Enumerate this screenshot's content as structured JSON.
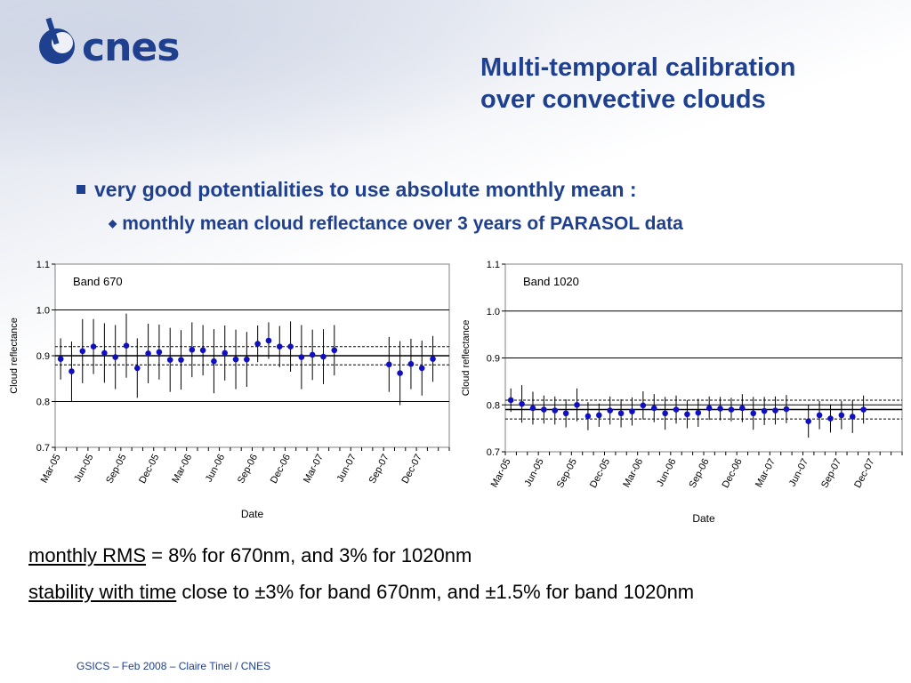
{
  "logo": {
    "text": "cnes"
  },
  "title": {
    "line1": "Multi-temporal calibration",
    "line2": "over convective clouds"
  },
  "bullets": {
    "main": "very good potentialities to use absolute monthly mean :",
    "sub": "monthly mean cloud reflectance over 3 years of PARASOL data"
  },
  "stats": {
    "rms_label": "monthly RMS",
    "rms_text": " = 8% for 670nm, and 3% for 1020nm",
    "stability_label": "stability with time",
    "stability_text": " close to ±3% for band 670nm, and ±1.5% for band 1020nm"
  },
  "footer": {
    "text": "GSICS  – Feb 2008 – Claire Tinel / CNES"
  },
  "colors": {
    "accent": "#1f3f8f",
    "marker": "#1010c0"
  },
  "chart_data": [
    {
      "type": "scatter",
      "title": "Band 670",
      "xlabel": "Date",
      "ylabel": "Cloud reflectance",
      "ylim": [
        0.7,
        1.1
      ],
      "yticks": [
        0.7,
        0.8,
        0.9,
        1.0,
        1.1
      ],
      "ytick_labels": [
        "0.7",
        "0.8",
        "0.9",
        "1.0",
        "1.1"
      ],
      "xtick_labels": [
        "Mar-05",
        "Jun-05",
        "Sep-05",
        "Dec-05",
        "Mar-06",
        "Jun-06",
        "Sep-06",
        "Dec-06",
        "Mar-07",
        "Jun-07",
        "Sep-07",
        "Dec-07"
      ],
      "mean_line": 0.9,
      "band_lines": [
        0.88,
        0.92
      ],
      "hlines": [
        0.8,
        0.9,
        1.0
      ],
      "points": [
        {
          "x": 1,
          "y": 0.893,
          "err": 0.045
        },
        {
          "x": 2,
          "y": 0.866,
          "err": 0.065
        },
        {
          "x": 3,
          "y": 0.91,
          "err": 0.07
        },
        {
          "x": 4,
          "y": 0.92,
          "err": 0.06
        },
        {
          "x": 5,
          "y": 0.906,
          "err": 0.065
        },
        {
          "x": 6,
          "y": 0.897,
          "err": 0.07
        },
        {
          "x": 7,
          "y": 0.922,
          "err": 0.07
        },
        {
          "x": 8,
          "y": 0.873,
          "err": 0.065
        },
        {
          "x": 9,
          "y": 0.905,
          "err": 0.065
        },
        {
          "x": 10,
          "y": 0.908,
          "err": 0.06
        },
        {
          "x": 11,
          "y": 0.891,
          "err": 0.07
        },
        {
          "x": 12,
          "y": 0.891,
          "err": 0.065
        },
        {
          "x": 13,
          "y": 0.913,
          "err": 0.06
        },
        {
          "x": 14,
          "y": 0.912,
          "err": 0.055
        },
        {
          "x": 15,
          "y": 0.888,
          "err": 0.07
        },
        {
          "x": 16,
          "y": 0.906,
          "err": 0.06
        },
        {
          "x": 17,
          "y": 0.892,
          "err": 0.065
        },
        {
          "x": 18,
          "y": 0.892,
          "err": 0.06
        },
        {
          "x": 19,
          "y": 0.926,
          "err": 0.04
        },
        {
          "x": 20,
          "y": 0.933,
          "err": 0.04
        },
        {
          "x": 21,
          "y": 0.92,
          "err": 0.045
        },
        {
          "x": 22,
          "y": 0.92,
          "err": 0.055
        },
        {
          "x": 23,
          "y": 0.897,
          "err": 0.07
        },
        {
          "x": 24,
          "y": 0.902,
          "err": 0.055
        },
        {
          "x": 25,
          "y": 0.898,
          "err": 0.06
        },
        {
          "x": 26,
          "y": 0.912,
          "err": 0.055
        },
        {
          "x": 31,
          "y": 0.881,
          "err": 0.06
        },
        {
          "x": 32,
          "y": 0.862,
          "err": 0.07
        },
        {
          "x": 33,
          "y": 0.882,
          "err": 0.055
        },
        {
          "x": 34,
          "y": 0.873,
          "err": 0.06
        },
        {
          "x": 35,
          "y": 0.893,
          "err": 0.05
        }
      ]
    },
    {
      "type": "scatter",
      "title": "Band 1020",
      "xlabel": "Date",
      "ylabel": "Cloud reflectance",
      "ylim": [
        0.7,
        1.1
      ],
      "yticks": [
        0.7,
        0.8,
        0.9,
        1.0,
        1.1
      ],
      "ytick_labels": [
        "0.7",
        "0.8",
        "0.9",
        "1.0",
        "1.1"
      ],
      "xtick_labels": [
        "Mar-05",
        "Jun-05",
        "Sep-05",
        "Dec-05",
        "Mar-06",
        "Jun-06",
        "Sep-06",
        "Dec-06",
        "Mar-07",
        "Jun-07",
        "Sep-07",
        "Dec-07"
      ],
      "mean_line": 0.79,
      "band_lines": [
        0.77,
        0.81
      ],
      "hlines": [
        0.8,
        0.9,
        1.0
      ],
      "points": [
        {
          "x": 1,
          "y": 0.81,
          "err": 0.025
        },
        {
          "x": 2,
          "y": 0.802,
          "err": 0.04
        },
        {
          "x": 3,
          "y": 0.793,
          "err": 0.035
        },
        {
          "x": 4,
          "y": 0.79,
          "err": 0.03
        },
        {
          "x": 5,
          "y": 0.788,
          "err": 0.03
        },
        {
          "x": 6,
          "y": 0.782,
          "err": 0.03
        },
        {
          "x": 7,
          "y": 0.8,
          "err": 0.035
        },
        {
          "x": 8,
          "y": 0.776,
          "err": 0.03
        },
        {
          "x": 9,
          "y": 0.778,
          "err": 0.025
        },
        {
          "x": 10,
          "y": 0.788,
          "err": 0.03
        },
        {
          "x": 11,
          "y": 0.782,
          "err": 0.03
        },
        {
          "x": 12,
          "y": 0.786,
          "err": 0.03
        },
        {
          "x": 13,
          "y": 0.799,
          "err": 0.03
        },
        {
          "x": 14,
          "y": 0.793,
          "err": 0.03
        },
        {
          "x": 15,
          "y": 0.782,
          "err": 0.035
        },
        {
          "x": 16,
          "y": 0.79,
          "err": 0.03
        },
        {
          "x": 17,
          "y": 0.78,
          "err": 0.03
        },
        {
          "x": 18,
          "y": 0.783,
          "err": 0.03
        },
        {
          "x": 19,
          "y": 0.793,
          "err": 0.025
        },
        {
          "x": 20,
          "y": 0.792,
          "err": 0.025
        },
        {
          "x": 21,
          "y": 0.79,
          "err": 0.025
        },
        {
          "x": 22,
          "y": 0.793,
          "err": 0.03
        },
        {
          "x": 23,
          "y": 0.782,
          "err": 0.035
        },
        {
          "x": 24,
          "y": 0.787,
          "err": 0.03
        },
        {
          "x": 25,
          "y": 0.788,
          "err": 0.03
        },
        {
          "x": 26,
          "y": 0.791,
          "err": 0.03
        },
        {
          "x": 28,
          "y": 0.765,
          "err": 0.035
        },
        {
          "x": 29,
          "y": 0.778,
          "err": 0.03
        },
        {
          "x": 30,
          "y": 0.771,
          "err": 0.03
        },
        {
          "x": 31,
          "y": 0.778,
          "err": 0.03
        },
        {
          "x": 32,
          "y": 0.775,
          "err": 0.035
        },
        {
          "x": 33,
          "y": 0.79,
          "err": 0.03
        }
      ]
    }
  ]
}
